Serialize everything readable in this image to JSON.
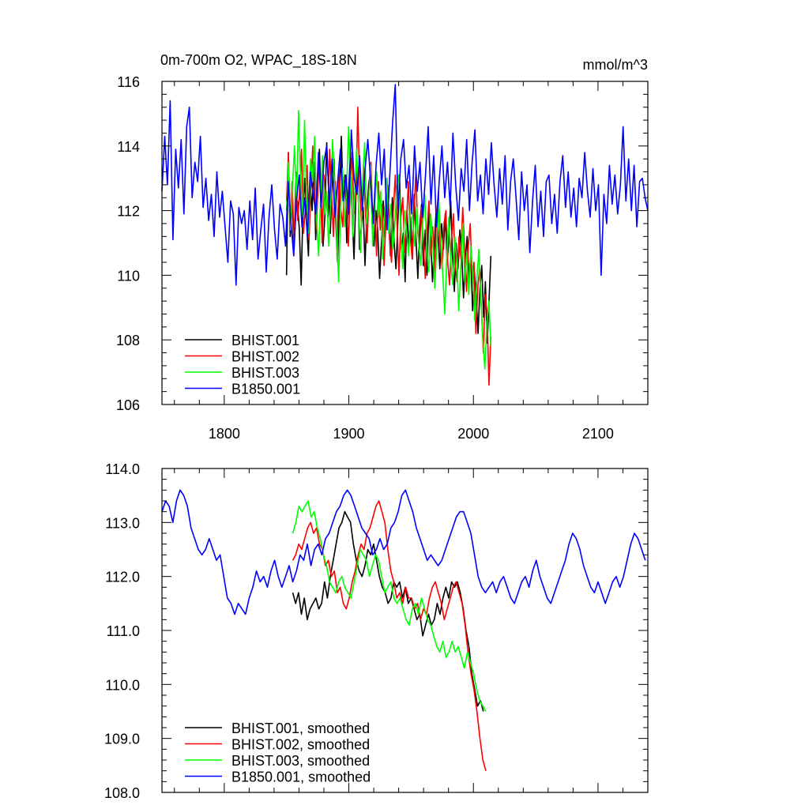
{
  "chart_data": [
    {
      "type": "line",
      "title": "0m-700m O2, WPAC_18S-18N",
      "units_label": "mmol/m^3",
      "xlabel": "",
      "ylabel": "",
      "xlim": [
        1750,
        2140
      ],
      "ylim": [
        106,
        116
      ],
      "x_ticks": [
        1800,
        1900,
        2000,
        2100
      ],
      "y_ticks": [
        106,
        108,
        110,
        112,
        114,
        116
      ],
      "x_tick_labels": [
        "1800",
        "1900",
        "2000",
        "2100"
      ],
      "y_tick_labels": [
        "106",
        "108",
        "110",
        "112",
        "114",
        "116"
      ],
      "legend_position": "bottom-left",
      "grid": false,
      "series": [
        {
          "name": "BHIST.001",
          "color": "#000000",
          "x_start": 1850,
          "x_end": 2014,
          "values": [
            110.0,
            113.8,
            111.2,
            112.5,
            110.8,
            111.9,
            112.3,
            111.4,
            109.7,
            112.1,
            113.0,
            111.6,
            110.6,
            112.8,
            112.0,
            113.5,
            111.1,
            112.4,
            113.9,
            112.2,
            110.9,
            111.8,
            114.1,
            112.7,
            111.3,
            112.9,
            113.6,
            111.7,
            110.4,
            112.3,
            114.3,
            112.5,
            113.1,
            111.0,
            112.6,
            113.7,
            111.9,
            110.5,
            112.4,
            113.3,
            110.8,
            111.5,
            112.1,
            110.3,
            111.9,
            112.8,
            113.2,
            111.6,
            110.9,
            112.0,
            111.4,
            109.9,
            111.0,
            112.3,
            111.2,
            113.0,
            111.7,
            110.6,
            112.4,
            111.0,
            110.2,
            111.6,
            112.9,
            110.8,
            111.3,
            109.8,
            112.0,
            110.9,
            111.8,
            110.5,
            112.5,
            111.1,
            109.9,
            111.5,
            112.2,
            110.3,
            111.4,
            110.0,
            112.1,
            111.2,
            109.8,
            110.9,
            112.0,
            111.4,
            110.2,
            111.6,
            110.8,
            111.9,
            110.4,
            111.1,
            112.3,
            110.6,
            109.5,
            111.0,
            110.2,
            111.4,
            110.7,
            109.3,
            110.5,
            111.2,
            109.9,
            110.6,
            108.9,
            110.1,
            109.4,
            108.2,
            109.6,
            110.3,
            108.7,
            109.8,
            107.9,
            109.2,
            110.6
          ]
        },
        {
          "name": "BHIST.002",
          "color": "#ff0000",
          "x_start": 1850,
          "x_end": 2014,
          "values": [
            112.3,
            113.8,
            111.5,
            112.9,
            110.9,
            113.2,
            111.7,
            112.6,
            113.9,
            111.3,
            112.0,
            113.4,
            111.1,
            112.7,
            114.0,
            112.2,
            111.4,
            113.6,
            112.8,
            111.0,
            113.1,
            112.4,
            111.8,
            113.9,
            112.6,
            111.2,
            112.9,
            110.7,
            113.3,
            112.0,
            111.5,
            113.0,
            112.4,
            110.9,
            112.7,
            113.8,
            111.9,
            112.5,
            115.2,
            112.8,
            111.6,
            113.4,
            112.1,
            111.0,
            112.6,
            113.5,
            111.8,
            112.3,
            110.6,
            112.9,
            111.4,
            112.2,
            110.3,
            111.7,
            112.8,
            111.1,
            110.4,
            112.0,
            113.1,
            111.5,
            110.0,
            111.8,
            112.4,
            110.7,
            111.6,
            112.9,
            111.2,
            110.5,
            111.9,
            113.2,
            111.3,
            110.8,
            112.1,
            111.0,
            109.9,
            111.4,
            112.3,
            110.6,
            111.5,
            110.1,
            111.8,
            112.6,
            110.9,
            110.2,
            111.6,
            112.0,
            110.4,
            109.7,
            111.1,
            111.9,
            110.3,
            109.8,
            111.2,
            110.5,
            112.1,
            110.8,
            109.5,
            110.9,
            111.6,
            109.9,
            110.4,
            108.2,
            109.6,
            110.2,
            108.9,
            107.6,
            109.4,
            108.8,
            106.6,
            108.1
          ]
        },
        {
          "name": "BHIST.003",
          "color": "#00ff00",
          "x_start": 1850,
          "x_end": 2014,
          "values": [
            112.0,
            113.5,
            111.4,
            112.8,
            114.0,
            112.2,
            115.1,
            113.0,
            111.7,
            114.8,
            112.5,
            111.3,
            113.6,
            112.9,
            114.3,
            111.8,
            110.6,
            112.4,
            113.7,
            111.9,
            112.6,
            110.9,
            112.2,
            114.2,
            112.8,
            111.4,
            109.8,
            112.0,
            113.3,
            111.5,
            112.7,
            114.6,
            113.1,
            111.2,
            112.5,
            113.9,
            112.0,
            110.7,
            112.9,
            114.1,
            111.6,
            112.3,
            113.4,
            110.9,
            112.1,
            113.2,
            111.8,
            112.6,
            110.5,
            111.9,
            113.0,
            111.3,
            112.2,
            110.8,
            111.5,
            112.7,
            113.1,
            111.4,
            110.2,
            112.0,
            111.3,
            110.6,
            112.4,
            111.7,
            110.9,
            112.1,
            111.0,
            110.3,
            111.6,
            112.5,
            110.8,
            110.1,
            111.9,
            111.0,
            109.6,
            110.9,
            112.3,
            111.2,
            110.0,
            108.8,
            110.6,
            111.8,
            110.4,
            109.7,
            111.2,
            110.5,
            108.9,
            110.3,
            111.6,
            109.8,
            110.7,
            109.4,
            110.9,
            110.1,
            108.6,
            109.9,
            110.8,
            109.3,
            108.0,
            107.1,
            108.5,
            109.2,
            107.8
          ]
        },
        {
          "name": "B1850.001",
          "color": "#0000ff",
          "x_start": 1750,
          "x_end": 2140,
          "values": [
            112.6,
            114.3,
            112.8,
            115.4,
            111.1,
            113.9,
            112.7,
            114.2,
            111.9,
            114.6,
            115.2,
            112.4,
            113.5,
            112.9,
            114.3,
            112.1,
            113.0,
            111.7,
            112.5,
            111.2,
            113.2,
            111.8,
            112.6,
            111.5,
            110.4,
            112.3,
            111.9,
            109.7,
            112.1,
            111.6,
            112.0,
            110.8,
            112.3,
            111.1,
            112.7,
            110.5,
            111.4,
            112.2,
            110.1,
            111.8,
            112.8,
            111.4,
            110.5,
            112.2,
            111.8,
            110.9,
            112.9,
            111.6,
            110.6,
            112.3,
            113.1,
            111.5,
            112.4,
            111.2,
            113.2,
            112.6,
            111.9,
            113.8,
            112.1,
            113.5,
            114.0,
            112.2,
            113.6,
            111.8,
            112.9,
            113.9,
            112.3,
            113.1,
            111.9,
            114.5,
            113.0,
            112.5,
            113.7,
            112.0,
            113.3,
            114.2,
            112.9,
            111.6,
            113.4,
            114.4,
            112.8,
            113.9,
            111.4,
            113.1,
            114.7,
            115.9,
            112.0,
            113.6,
            114.2,
            112.7,
            113.4,
            111.9,
            114.0,
            112.6,
            113.5,
            111.8,
            113.1,
            114.6,
            112.2,
            113.7,
            111.5,
            112.9,
            114.0,
            112.4,
            113.5,
            112.1,
            114.4,
            112.8,
            111.7,
            113.3,
            112.6,
            114.2,
            112.0,
            113.5,
            114.5,
            112.3,
            113.1,
            111.9,
            113.6,
            112.5,
            114.1,
            112.8,
            111.8,
            113.3,
            112.2,
            113.7,
            111.4,
            112.9,
            113.6,
            112.4,
            111.1,
            113.2,
            112.0,
            112.8,
            110.7,
            112.3,
            113.4,
            111.5,
            112.6,
            111.2,
            112.9,
            113.1,
            111.6,
            112.5,
            111.3,
            112.9,
            113.7,
            112.1,
            113.2,
            111.8,
            112.7,
            111.5,
            113.0,
            112.4,
            113.8,
            112.6,
            111.8,
            113.3,
            112.0,
            112.8,
            110.0,
            112.5,
            111.6,
            113.4,
            112.2,
            113.1,
            111.9,
            112.8,
            114.6,
            112.3,
            113.6,
            112.0,
            113.4,
            111.5,
            112.9,
            113.0,
            112.4,
            112.0
          ]
        }
      ]
    },
    {
      "type": "line",
      "title": "",
      "xlabel": "",
      "ylabel": "",
      "xlim": [
        1750,
        2140
      ],
      "ylim": [
        108,
        114
      ],
      "x_ticks": [
        1800,
        1900,
        2000,
        2100
      ],
      "y_ticks": [
        108,
        109,
        110,
        111,
        112,
        113,
        114
      ],
      "y_tick_labels": [
        "108.0",
        "109.0",
        "110.0",
        "111.0",
        "112.0",
        "113.0",
        "114.0"
      ],
      "legend_position": "bottom-left",
      "grid": false,
      "series": [
        {
          "name": "BHIST.001, smoothed",
          "color": "#000000",
          "x_start": 1855,
          "x_end": 2008,
          "values": [
            111.7,
            111.5,
            111.7,
            111.3,
            111.6,
            111.2,
            111.4,
            111.5,
            111.6,
            111.4,
            111.5,
            111.9,
            111.6,
            112.0,
            112.3,
            112.6,
            112.9,
            113.0,
            113.2,
            113.1,
            113.0,
            112.6,
            112.3,
            112.1,
            112.0,
            112.2,
            112.5,
            112.4,
            112.6,
            112.3,
            112.0,
            111.8,
            111.7,
            111.5,
            111.6,
            111.9,
            111.8,
            111.9,
            111.6,
            111.8,
            111.5,
            111.6,
            111.4,
            111.2,
            111.3,
            110.9,
            111.1,
            111.3,
            111.1,
            111.2,
            111.5,
            111.3,
            111.6,
            111.8,
            111.6,
            111.9,
            111.8,
            111.9,
            111.7,
            111.4,
            111.0,
            110.7,
            110.2,
            109.9,
            109.6,
            109.7,
            109.5
          ]
        },
        {
          "name": "BHIST.002, smoothed",
          "color": "#ff0000",
          "x_start": 1855,
          "x_end": 2010,
          "values": [
            112.3,
            112.4,
            112.6,
            112.5,
            112.7,
            112.9,
            113.0,
            112.8,
            112.9,
            112.6,
            112.5,
            112.2,
            112.3,
            112.0,
            112.1,
            111.7,
            111.8,
            111.5,
            111.4,
            111.6,
            111.9,
            112.1,
            112.4,
            112.6,
            112.5,
            112.8,
            112.9,
            113.1,
            113.3,
            113.4,
            113.2,
            113.0,
            112.5,
            112.1,
            111.9,
            111.6,
            111.7,
            111.5,
            111.8,
            111.6,
            111.6,
            111.4,
            111.5,
            111.2,
            111.4,
            111.3,
            111.6,
            111.8,
            111.9,
            111.7,
            111.5,
            111.2,
            111.4,
            111.6,
            111.8,
            111.9,
            111.7,
            111.5,
            111.1,
            110.6,
            110.2,
            109.9,
            109.5,
            109.0,
            108.6,
            108.4
          ]
        },
        {
          "name": "BHIST.003, smoothed",
          "color": "#00ff00",
          "x_start": 1855,
          "x_end": 2010,
          "values": [
            112.8,
            113.0,
            113.3,
            113.2,
            113.3,
            113.4,
            113.1,
            113.2,
            112.9,
            112.7,
            112.4,
            112.2,
            111.9,
            111.8,
            111.7,
            111.9,
            112.0,
            111.8,
            111.7,
            111.6,
            111.9,
            112.2,
            112.5,
            112.4,
            112.3,
            112.0,
            112.2,
            112.4,
            112.3,
            112.0,
            111.7,
            111.8,
            111.9,
            111.6,
            111.5,
            111.6,
            111.4,
            111.2,
            111.1,
            111.4,
            111.5,
            111.3,
            111.6,
            111.4,
            111.2,
            111.1,
            110.9,
            110.7,
            110.6,
            110.8,
            110.5,
            110.6,
            110.8,
            110.6,
            110.7,
            110.5,
            110.3,
            110.6,
            110.4,
            110.2,
            109.9,
            109.7,
            109.6,
            109.5
          ]
        },
        {
          "name": "B1850.001, smoothed",
          "color": "#0000ff",
          "x_start": 1750,
          "x_end": 2138,
          "values": [
            113.2,
            113.4,
            113.3,
            113.0,
            113.4,
            113.6,
            113.5,
            113.3,
            112.9,
            112.7,
            112.5,
            112.4,
            112.5,
            112.7,
            112.5,
            112.3,
            112.4,
            112.0,
            111.6,
            111.5,
            111.3,
            111.5,
            111.4,
            111.3,
            111.6,
            111.8,
            112.1,
            111.9,
            112.0,
            111.8,
            112.1,
            112.3,
            112.0,
            111.8,
            112.0,
            112.2,
            111.9,
            112.1,
            112.4,
            112.3,
            112.6,
            112.2,
            112.5,
            112.6,
            112.4,
            112.7,
            112.8,
            113.0,
            113.2,
            113.3,
            113.5,
            113.6,
            113.5,
            113.3,
            113.1,
            112.9,
            112.8,
            112.7,
            112.4,
            112.5,
            112.7,
            112.5,
            112.6,
            112.9,
            113.0,
            113.2,
            113.5,
            113.6,
            113.4,
            113.2,
            112.9,
            112.7,
            112.5,
            112.3,
            112.4,
            112.3,
            112.2,
            112.3,
            112.5,
            112.7,
            112.9,
            113.1,
            113.2,
            113.2,
            113.0,
            112.8,
            112.4,
            112.0,
            111.8,
            111.7,
            111.8,
            111.9,
            111.7,
            111.9,
            112.0,
            111.8,
            111.6,
            111.5,
            111.7,
            111.9,
            112.0,
            111.8,
            112.1,
            112.3,
            112.0,
            111.8,
            111.6,
            111.5,
            111.7,
            111.9,
            112.1,
            112.3,
            112.6,
            112.8,
            112.7,
            112.5,
            112.2,
            112.0,
            111.8,
            111.7,
            111.9,
            111.7,
            111.5,
            111.7,
            111.9,
            112.0,
            111.8,
            112.0,
            112.3,
            112.6,
            112.8,
            112.7,
            112.5,
            112.3
          ]
        }
      ]
    }
  ]
}
